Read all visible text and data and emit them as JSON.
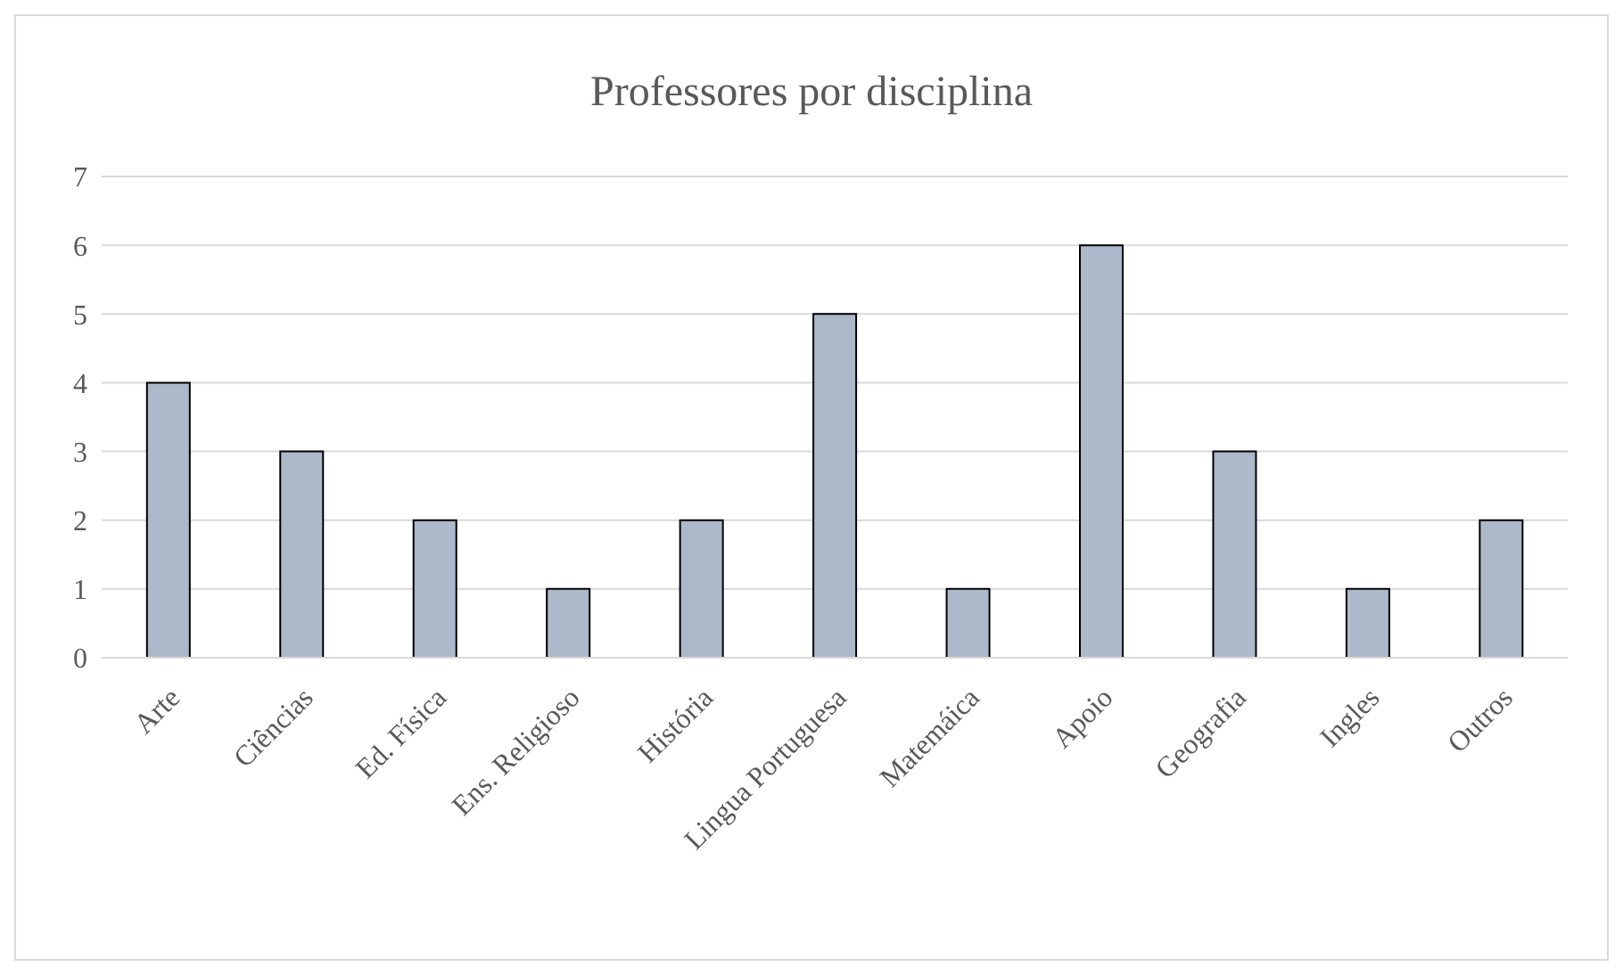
{
  "chart_data": {
    "type": "bar",
    "title": "Professores por disciplina",
    "categories": [
      "Arte",
      "Ciências",
      "Ed. Física",
      "Ens. Religioso",
      "História",
      "Lingua Portuguesa",
      "Matemáica",
      "Apoio",
      "Geografia",
      "Ingles",
      "Outros"
    ],
    "values": [
      4,
      3,
      2,
      1,
      2,
      5,
      1,
      6,
      3,
      1,
      2
    ],
    "color": "#adb9ca",
    "ylim": [
      0,
      7
    ],
    "yticks": [
      0,
      1,
      2,
      3,
      4,
      5,
      6,
      7
    ],
    "grid": "y",
    "legend": false
  }
}
